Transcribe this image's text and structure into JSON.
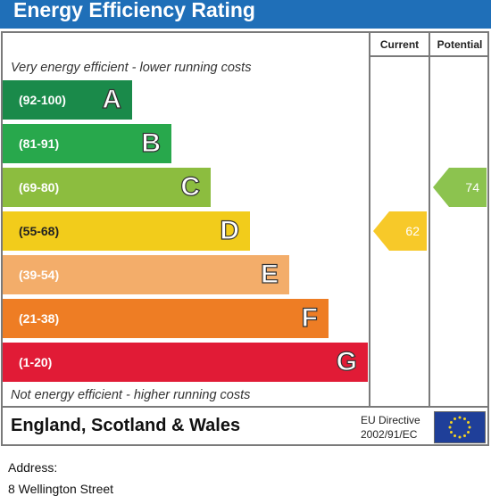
{
  "title": "Energy Efficiency Rating",
  "columns": {
    "current": "Current",
    "potential": "Potential"
  },
  "captions": {
    "top": "Very energy efficient - lower running costs",
    "bottom": "Not energy efficient - higher running costs"
  },
  "chart_data": {
    "type": "bar",
    "title": "Energy Efficiency Rating",
    "categories": [
      "A",
      "B",
      "C",
      "D",
      "E",
      "F",
      "G"
    ],
    "ranges": [
      "(92-100)",
      "(81-91)",
      "(69-80)",
      "(55-68)",
      "(39-54)",
      "(21-38)",
      "(1-20)"
    ],
    "range_bounds": [
      [
        92,
        100
      ],
      [
        81,
        91
      ],
      [
        69,
        80
      ],
      [
        55,
        68
      ],
      [
        39,
        54
      ],
      [
        21,
        38
      ],
      [
        1,
        20
      ]
    ],
    "band_colors": [
      "#1a8a4a",
      "#28a84c",
      "#8cbd3f",
      "#f2cc1b",
      "#f3ad6a",
      "#ee7d24",
      "#e11b36"
    ],
    "current": {
      "value": 62,
      "band": "D",
      "color": "#f7c929"
    },
    "potential": {
      "value": 74,
      "band": "C",
      "color": "#8cc34f"
    }
  },
  "footer": {
    "country": "England, Scotland & Wales",
    "eu_line1": "EU Directive",
    "eu_line2": "2002/91/EC"
  },
  "address": {
    "label": "Address:",
    "line1": "8 Wellington Street"
  }
}
